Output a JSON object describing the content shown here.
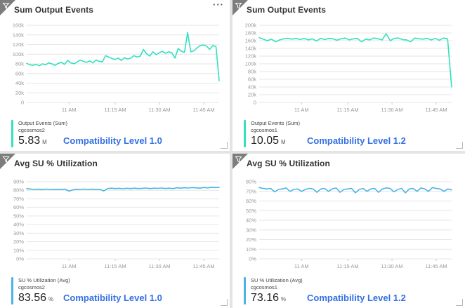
{
  "colors": {
    "teal": "#33e0c0",
    "blue": "#4bb4e7",
    "caption_blue": "#3470e4",
    "grid": "#e6e6e6",
    "tick": "#cccccc",
    "axis_label": "#999999",
    "badge_grey": "#7d7d7d",
    "page_bg": "#e4e4e4",
    "tile_bg": "#ffffff"
  },
  "icons": {
    "corner": "filter-funnel",
    "menu_glyph": "···"
  },
  "tiles": [
    {
      "title": "Sum Output Events",
      "menu": "···",
      "legend": {
        "metric": "Output Events (Sum)",
        "resource": "cgcosmos2",
        "value": "5.83",
        "unit": "M"
      },
      "caption": "Compatibility Level 1.0",
      "chart_data": {
        "type": "line",
        "color": "#33e0c0",
        "title": "Sum Output Events",
        "ylim": [
          0,
          160000
        ],
        "ytick_step": 20000,
        "yformat": "k",
        "x_ticks": [
          "11 AM",
          "11:15 AM",
          "11:30 AM",
          "11:45 AM"
        ],
        "values": [
          81000,
          78000,
          77000,
          79000,
          76000,
          80000,
          78000,
          82000,
          80000,
          77000,
          81000,
          83000,
          79000,
          87000,
          82000,
          80000,
          84000,
          88000,
          85000,
          83000,
          86000,
          82000,
          88000,
          85000,
          84000,
          97000,
          94000,
          91000,
          89000,
          92000,
          87000,
          93000,
          90000,
          92000,
          97000,
          94000,
          96000,
          110000,
          101000,
          96000,
          105000,
          99000,
          103000,
          106000,
          102000,
          105000,
          103000,
          92000,
          112000,
          106000,
          104000,
          145000,
          105000,
          107000,
          113000,
          118000,
          119000,
          117000,
          110000,
          118000,
          116000,
          45000
        ]
      }
    },
    {
      "title": "Sum Output Events",
      "legend": {
        "metric": "Output Events (Sum)",
        "resource": "cgcosmos1",
        "value": "10.05",
        "unit": "M"
      },
      "caption": "Compatibility Level 1.2",
      "chart_data": {
        "type": "line",
        "color": "#33e0c0",
        "title": "Sum Output Events",
        "ylim": [
          0,
          200000
        ],
        "ytick_step": 20000,
        "yformat": "k",
        "x_ticks": [
          "11 AM",
          "11:15 AM",
          "11:30 AM",
          "11:45 AM"
        ],
        "values": [
          168000,
          164000,
          160000,
          164000,
          157000,
          162000,
          165000,
          166000,
          164000,
          166000,
          163000,
          166000,
          162000,
          165000,
          159000,
          166000,
          163000,
          166000,
          165000,
          161000,
          165000,
          167000,
          162000,
          165000,
          166000,
          157000,
          164000,
          162000,
          167000,
          165000,
          162000,
          178000,
          160000,
          166000,
          167000,
          163000,
          162000,
          157000,
          167000,
          165000,
          164000,
          166000,
          162000,
          166000,
          161000,
          167000,
          165000,
          40000
        ]
      }
    },
    {
      "title": "Avg SU % Utilization",
      "legend": {
        "metric": "SU % Utilization (Avg)",
        "resource": "cgcosmos2",
        "value": "83.56",
        "unit": "%"
      },
      "caption": "Compatibility Level 1.0",
      "chart_data": {
        "type": "line",
        "color": "#4bb4e7",
        "title": "Avg SU % Utilization",
        "ylim": [
          0,
          90
        ],
        "ytick_step": 10,
        "yformat": "%",
        "x_ticks": [
          "11 AM",
          "11:15 AM",
          "11:30 AM",
          "11:45 AM"
        ],
        "values": [
          82,
          81.5,
          81,
          81.3,
          80.8,
          81.4,
          81,
          80.9,
          81.2,
          80.8,
          81.3,
          79,
          80.5,
          81.2,
          81,
          81.4,
          81,
          81.3,
          80.9,
          81.2,
          79.2,
          82,
          82.5,
          82,
          82.3,
          81.8,
          82.4,
          82,
          82.5,
          82,
          82.3,
          82.6,
          82,
          82.5,
          82.2,
          82.6,
          82.1,
          82.5,
          82,
          83,
          82.5,
          83,
          82.6,
          83.2,
          82.8,
          82.5,
          83.3,
          82.8,
          83.5,
          83.2,
          83.4
        ]
      }
    },
    {
      "title": "Avg SU % Utilization",
      "legend": {
        "metric": "SU % Utilization (Avg)",
        "resource": "cgcosmos1",
        "value": "73.16",
        "unit": "%"
      },
      "caption": "Compatibility Level 1.2",
      "chart_data": {
        "type": "line",
        "color": "#4bb4e7",
        "title": "Avg SU % Utilization",
        "ylim": [
          0,
          80
        ],
        "ytick_step": 10,
        "yformat": "%",
        "x_ticks": [
          "11 AM",
          "11:15 AM",
          "11:30 AM",
          "11:45 AM"
        ],
        "values": [
          74,
          73,
          72.5,
          73,
          69.5,
          72,
          72.5,
          73.5,
          70,
          72,
          72.5,
          70,
          72,
          73,
          72.5,
          69,
          72.5,
          73,
          70,
          72.5,
          73.5,
          69,
          72,
          72.5,
          73,
          68.5,
          72,
          73,
          70,
          72.5,
          73,
          69,
          72.5,
          73.5,
          73,
          69.5,
          72,
          73,
          68.5,
          72.5,
          73,
          70,
          73.5,
          72.5,
          70,
          74,
          73,
          72.5,
          70,
          72.5,
          71.5
        ]
      }
    }
  ]
}
